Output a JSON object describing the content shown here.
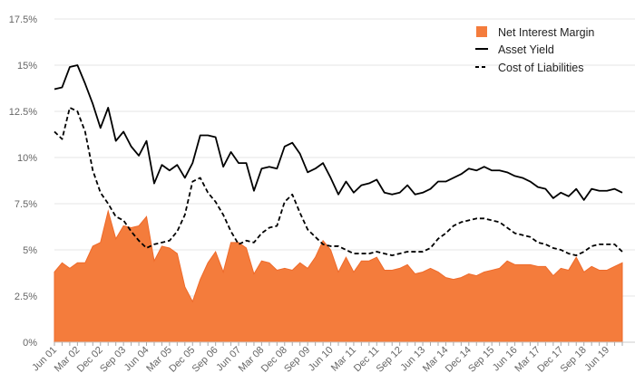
{
  "chart_data": {
    "type": "area+line",
    "title": "",
    "xlabel": "",
    "ylabel": "",
    "ylim": [
      0,
      17.5
    ],
    "yticks": [
      {
        "value": 0,
        "label": "0%"
      },
      {
        "value": 2.5,
        "label": "2.5%"
      },
      {
        "value": 5,
        "label": "5%"
      },
      {
        "value": 7.5,
        "label": "7.5%"
      },
      {
        "value": 10,
        "label": "10%"
      },
      {
        "value": 12.5,
        "label": "12.5%"
      },
      {
        "value": 15,
        "label": "15%"
      },
      {
        "value": 17.5,
        "label": "17.5%"
      }
    ],
    "xticks": [
      {
        "index": 0,
        "label": "Jun 01"
      },
      {
        "index": 3,
        "label": "Mar 02"
      },
      {
        "index": 6,
        "label": "Dec 02"
      },
      {
        "index": 9,
        "label": "Sep 03"
      },
      {
        "index": 12,
        "label": "Jun 04"
      },
      {
        "index": 15,
        "label": "Mar 05"
      },
      {
        "index": 18,
        "label": "Dec 05"
      },
      {
        "index": 21,
        "label": "Sep 06"
      },
      {
        "index": 24,
        "label": "Jun 07"
      },
      {
        "index": 27,
        "label": "Mar 08"
      },
      {
        "index": 30,
        "label": "Dec 08"
      },
      {
        "index": 33,
        "label": "Sep 09"
      },
      {
        "index": 36,
        "label": "Jun 10"
      },
      {
        "index": 39,
        "label": "Mar 11"
      },
      {
        "index": 42,
        "label": "Dec 11"
      },
      {
        "index": 45,
        "label": "Sep 12"
      },
      {
        "index": 48,
        "label": "Jun 13"
      },
      {
        "index": 51,
        "label": "Mar 14"
      },
      {
        "index": 54,
        "label": "Dec 14"
      },
      {
        "index": 57,
        "label": "Sep 15"
      },
      {
        "index": 60,
        "label": "Jun 16"
      },
      {
        "index": 63,
        "label": "Mar 17"
      },
      {
        "index": 66,
        "label": "Dec 17"
      },
      {
        "index": 69,
        "label": "Sep 18"
      },
      {
        "index": 72,
        "label": "Jun 19"
      }
    ],
    "n_points": 75,
    "legend_position": "top-right",
    "series": [
      {
        "name": "Net Interest Margin",
        "kind": "area",
        "color": "#f47c3c",
        "values": [
          3.8,
          4.3,
          4.0,
          4.3,
          4.3,
          5.2,
          5.4,
          7.1,
          5.6,
          6.3,
          6.2,
          6.3,
          6.8,
          4.4,
          5.2,
          5.1,
          4.8,
          3.0,
          2.2,
          3.4,
          4.3,
          4.9,
          3.8,
          5.4,
          5.4,
          5.1,
          3.7,
          4.4,
          4.3,
          3.9,
          4.0,
          3.9,
          4.3,
          4.0,
          4.6,
          5.5,
          5.0,
          3.8,
          4.6,
          3.8,
          4.4,
          4.4,
          4.6,
          3.9,
          3.9,
          4.0,
          4.2,
          3.7,
          3.8,
          4.0,
          3.8,
          3.5,
          3.4,
          3.5,
          3.7,
          3.6,
          3.8,
          3.9,
          4.0,
          4.4,
          4.2,
          4.2,
          4.2,
          4.1,
          4.1,
          3.6,
          4.0,
          3.9,
          4.6,
          3.8,
          4.1,
          3.9,
          3.9,
          4.1,
          4.3
        ]
      },
      {
        "name": "Asset Yield",
        "kind": "line",
        "dash": "solid",
        "color": "#000000",
        "values": [
          13.7,
          13.8,
          14.9,
          15.0,
          14.0,
          12.9,
          11.6,
          12.7,
          10.9,
          11.4,
          10.6,
          10.1,
          10.9,
          8.6,
          9.6,
          9.3,
          9.6,
          8.9,
          9.7,
          11.2,
          11.2,
          11.1,
          9.5,
          10.3,
          9.7,
          9.7,
          8.2,
          9.4,
          9.5,
          9.4,
          10.6,
          10.8,
          10.2,
          9.2,
          9.4,
          9.7,
          8.9,
          8.0,
          8.7,
          8.1,
          8.5,
          8.6,
          8.8,
          8.1,
          8.0,
          8.1,
          8.5,
          8.0,
          8.1,
          8.3,
          8.7,
          8.7,
          8.9,
          9.1,
          9.4,
          9.3,
          9.5,
          9.3,
          9.3,
          9.2,
          9.0,
          8.9,
          8.7,
          8.4,
          8.3,
          7.8,
          8.1,
          7.9,
          8.3,
          7.7,
          8.3,
          8.2,
          8.2,
          8.3,
          8.1
        ]
      },
      {
        "name": "Cost of Liabilities",
        "kind": "line",
        "dash": "dashed",
        "color": "#000000",
        "values": [
          11.4,
          11.0,
          12.7,
          12.5,
          11.4,
          9.3,
          8.1,
          7.5,
          6.8,
          6.6,
          6.0,
          5.5,
          5.1,
          5.3,
          5.4,
          5.5,
          6.0,
          6.9,
          8.7,
          8.9,
          8.1,
          7.6,
          6.9,
          6.0,
          5.3,
          5.5,
          5.4,
          5.9,
          6.2,
          6.3,
          7.6,
          8.0,
          7.0,
          6.1,
          5.7,
          5.3,
          5.2,
          5.2,
          5.0,
          4.8,
          4.8,
          4.8,
          4.9,
          4.8,
          4.7,
          4.8,
          4.9,
          4.9,
          4.9,
          5.1,
          5.6,
          5.9,
          6.3,
          6.5,
          6.6,
          6.7,
          6.7,
          6.6,
          6.5,
          6.2,
          5.9,
          5.8,
          5.7,
          5.4,
          5.3,
          5.1,
          5.0,
          4.8,
          4.7,
          4.9,
          5.2,
          5.3,
          5.3,
          5.3,
          4.9
        ]
      }
    ]
  },
  "legend": {
    "items": [
      {
        "label": "Net Interest Margin"
      },
      {
        "label": "Asset Yield"
      },
      {
        "label": "Cost of Liabilities"
      }
    ]
  }
}
